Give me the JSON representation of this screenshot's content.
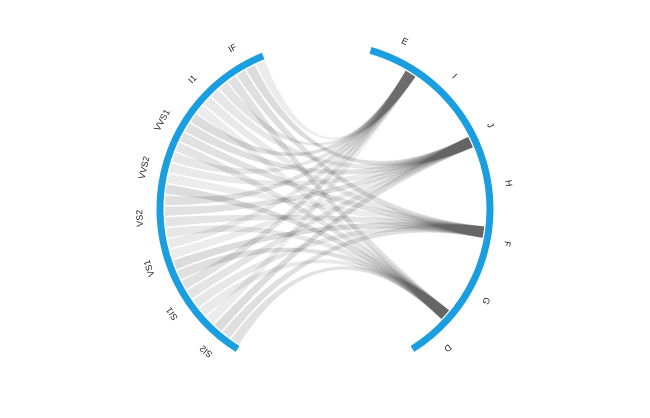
{
  "chart_data": {
    "type": "chord",
    "left_nodes": [
      "IF",
      "I1",
      "VVS1",
      "VVS2",
      "VS2",
      "VS1",
      "SI1",
      "SI2"
    ],
    "right_nodes": [
      "E",
      "I",
      "J",
      "H",
      "F",
      "G",
      "D"
    ],
    "node_labels_left": [
      "IF",
      "I1",
      "VVS1",
      "VVS2",
      "VS2",
      "VS1",
      "SI1",
      "SI2"
    ],
    "node_labels_right": [
      "E",
      "I",
      "J",
      "H",
      "F",
      "G",
      "D"
    ],
    "title": "",
    "legend": "none",
    "colors": {
      "arc": "#1a9ee0",
      "ribbon": "#c9c9c9",
      "label": "#222222",
      "background": "#ffffff"
    }
  }
}
